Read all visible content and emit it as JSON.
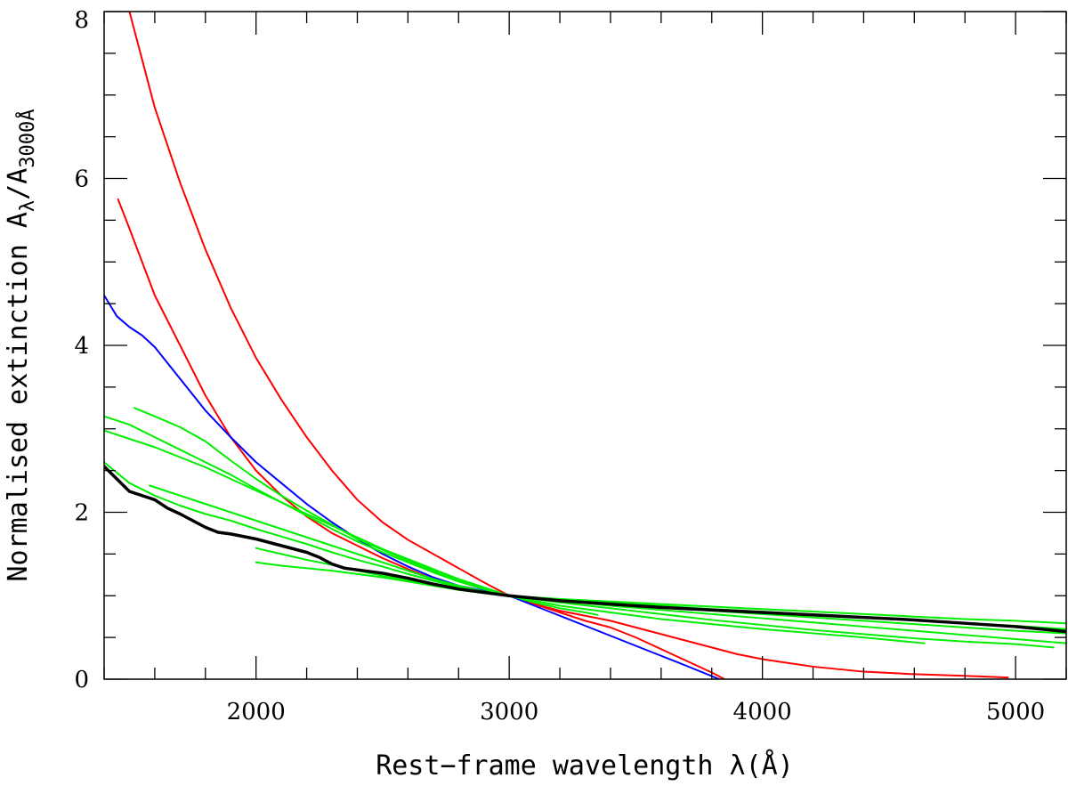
{
  "chart_data": {
    "type": "line",
    "xlabel": "Rest−frame wavelength λ(Å)",
    "ylabel": {
      "prefix": "Normalised extinction A",
      "sub1": "λ",
      "slash": "/A",
      "sub2": "3000Å"
    },
    "xlim": [
      1400,
      5200
    ],
    "ylim": [
      0,
      8
    ],
    "x_ticks": [
      2000,
      3000,
      4000,
      5000
    ],
    "x_minor_step": 200,
    "y_ticks": [
      0,
      2,
      4,
      6,
      8
    ],
    "y_minor_step": 0.5,
    "grid": false,
    "colors": {
      "red": "#ff0000",
      "blue": "#0000ff",
      "green": "#00ee00",
      "black": "#000000"
    },
    "series": [
      {
        "color": "red",
        "width": 2,
        "x": [
          1500,
          1600,
          1700,
          1800,
          1900,
          2000,
          2100,
          2200,
          2300,
          2400,
          2500,
          2600,
          2700,
          2800,
          2900,
          3000,
          3100,
          3200,
          3300,
          3400,
          3500,
          3600,
          3700,
          3800,
          3900,
          4000,
          4200,
          4400,
          4600,
          4800,
          4970
        ],
        "y": [
          8.0,
          6.85,
          5.95,
          5.15,
          4.45,
          3.85,
          3.35,
          2.9,
          2.5,
          2.15,
          1.88,
          1.67,
          1.5,
          1.33,
          1.16,
          1.0,
          0.9,
          0.82,
          0.76,
          0.7,
          0.62,
          0.54,
          0.46,
          0.38,
          0.3,
          0.24,
          0.15,
          0.09,
          0.06,
          0.04,
          0.02
        ]
      },
      {
        "color": "red",
        "width": 2,
        "x": [
          1455,
          1500,
          1550,
          1600,
          1650,
          1700,
          1800,
          1900,
          2000,
          2100,
          2200,
          2300,
          2400,
          2500,
          2600,
          2700,
          2800,
          2900,
          3000,
          3100,
          3200,
          3300,
          3400,
          3500,
          3600,
          3700,
          3800,
          3850
        ],
        "y": [
          5.75,
          5.4,
          5.0,
          4.6,
          4.3,
          4.0,
          3.4,
          2.9,
          2.5,
          2.2,
          1.95,
          1.75,
          1.6,
          1.45,
          1.32,
          1.2,
          1.1,
          1.05,
          1.0,
          0.9,
          0.8,
          0.7,
          0.62,
          0.5,
          0.36,
          0.22,
          0.08,
          0.0
        ]
      },
      {
        "color": "blue",
        "width": 2,
        "x": [
          1400,
          1450,
          1500,
          1550,
          1600,
          1700,
          1800,
          1900,
          2000,
          2100,
          2200,
          2300,
          2400,
          2500,
          2600,
          2700,
          2800,
          2900,
          3000,
          3100,
          3200,
          3300,
          3400,
          3500,
          3600,
          3700,
          3830
        ],
        "y": [
          4.6,
          4.35,
          4.22,
          4.12,
          3.98,
          3.6,
          3.22,
          2.9,
          2.6,
          2.35,
          2.1,
          1.88,
          1.68,
          1.5,
          1.35,
          1.22,
          1.12,
          1.06,
          1.0,
          0.88,
          0.76,
          0.64,
          0.52,
          0.4,
          0.28,
          0.16,
          0.0
        ]
      },
      {
        "color": "green",
        "width": 2,
        "x": [
          1520,
          1600,
          1700,
          1800,
          1900,
          2000,
          2100,
          2200,
          2300,
          2400,
          2500,
          2600,
          2700,
          2800,
          2900,
          3000,
          3100,
          3200,
          3300,
          3350
        ],
        "y": [
          3.25,
          3.15,
          3.02,
          2.85,
          2.62,
          2.4,
          2.2,
          2.02,
          1.85,
          1.68,
          1.55,
          1.42,
          1.3,
          1.18,
          1.08,
          1.0,
          0.92,
          0.85,
          0.8,
          0.77
        ]
      },
      {
        "color": "green",
        "width": 2,
        "x": [
          1400,
          1500,
          1600,
          1700,
          1800,
          1900,
          2000,
          2100,
          2200,
          2300,
          2400,
          2500,
          2600,
          2700,
          2800,
          2900,
          3000,
          3200,
          3400,
          3600,
          3800,
          4000,
          4200,
          4400,
          4640
        ],
        "y": [
          3.15,
          3.05,
          2.9,
          2.75,
          2.6,
          2.45,
          2.28,
          2.12,
          1.96,
          1.8,
          1.65,
          1.52,
          1.4,
          1.28,
          1.17,
          1.08,
          1.0,
          0.88,
          0.8,
          0.72,
          0.66,
          0.6,
          0.55,
          0.5,
          0.43
        ]
      },
      {
        "color": "green",
        "width": 2,
        "x": [
          1400,
          1500,
          1600,
          1700,
          1800,
          1900,
          2000,
          2100,
          2200,
          2300,
          2400,
          2500,
          2600,
          2700,
          2800,
          2900,
          3000,
          3200,
          3400,
          3600,
          3800,
          4000,
          4200,
          4400,
          4600,
          4800,
          5000,
          5150
        ],
        "y": [
          2.98,
          2.88,
          2.78,
          2.66,
          2.54,
          2.4,
          2.26,
          2.12,
          1.98,
          1.84,
          1.7,
          1.56,
          1.44,
          1.32,
          1.2,
          1.1,
          1.0,
          0.92,
          0.85,
          0.78,
          0.71,
          0.65,
          0.59,
          0.54,
          0.49,
          0.45,
          0.42,
          0.38
        ]
      },
      {
        "color": "green",
        "width": 2,
        "x": [
          1580,
          1700,
          1800,
          1900,
          2000,
          2100,
          2200,
          2300,
          2400,
          2500,
          2600,
          2700,
          2800,
          2900,
          3000,
          3200,
          3400,
          3600,
          3800,
          4000,
          4200,
          4400,
          4600,
          4800,
          5000,
          5200
        ],
        "y": [
          2.32,
          2.2,
          2.1,
          2.0,
          1.9,
          1.8,
          1.7,
          1.6,
          1.5,
          1.4,
          1.3,
          1.2,
          1.12,
          1.05,
          1.0,
          0.94,
          0.88,
          0.83,
          0.78,
          0.73,
          0.68,
          0.63,
          0.58,
          0.53,
          0.48,
          0.43
        ]
      },
      {
        "color": "green",
        "width": 2,
        "x": [
          1400,
          1500,
          1600,
          1700,
          1800,
          1900,
          2000,
          2100,
          2200,
          2300,
          2400,
          2500,
          2600,
          2700,
          2800,
          2900,
          3000,
          3200,
          3400,
          3600,
          3800,
          4000,
          4200,
          4400,
          4600,
          4800,
          5000,
          5200
        ],
        "y": [
          2.6,
          2.35,
          2.2,
          2.08,
          1.98,
          1.9,
          1.8,
          1.71,
          1.62,
          1.52,
          1.43,
          1.35,
          1.26,
          1.18,
          1.1,
          1.05,
          1.0,
          0.95,
          0.9,
          0.86,
          0.82,
          0.78,
          0.74,
          0.7,
          0.66,
          0.62,
          0.58,
          0.55
        ]
      },
      {
        "color": "green",
        "width": 2,
        "x": [
          2000,
          2100,
          2200,
          2300,
          2400,
          2500,
          2600,
          2700,
          2800,
          2900,
          3000,
          3200,
          3400,
          3600,
          3800,
          4000,
          4200,
          4400,
          4600,
          4800,
          5000,
          5200
        ],
        "y": [
          1.57,
          1.5,
          1.43,
          1.37,
          1.3,
          1.24,
          1.18,
          1.12,
          1.07,
          1.03,
          1.0,
          0.96,
          0.92,
          0.88,
          0.84,
          0.81,
          0.77,
          0.74,
          0.71,
          0.67,
          0.64,
          0.6
        ]
      },
      {
        "color": "green",
        "width": 2,
        "x": [
          2000,
          2100,
          2200,
          2300,
          2400,
          2500,
          2600,
          2700,
          2800,
          2900,
          3000,
          3200,
          3400,
          3600,
          3800,
          4000,
          4200,
          4400,
          4600,
          4800,
          5000,
          5200
        ],
        "y": [
          1.4,
          1.36,
          1.33,
          1.3,
          1.26,
          1.22,
          1.17,
          1.12,
          1.08,
          1.04,
          1.0,
          0.96,
          0.93,
          0.9,
          0.87,
          0.84,
          0.81,
          0.78,
          0.75,
          0.72,
          0.7,
          0.67
        ]
      },
      {
        "color": "black",
        "width": 3.5,
        "x": [
          1400,
          1450,
          1500,
          1550,
          1600,
          1650,
          1700,
          1750,
          1800,
          1850,
          1900,
          2000,
          2100,
          2200,
          2250,
          2300,
          2350,
          2400,
          2500,
          2600,
          2700,
          2800,
          2900,
          3000,
          3200,
          3400,
          3600,
          3800,
          4000,
          4200,
          4400,
          4600,
          4800,
          5000,
          5200
        ],
        "y": [
          2.55,
          2.4,
          2.25,
          2.2,
          2.15,
          2.05,
          1.98,
          1.9,
          1.82,
          1.76,
          1.74,
          1.68,
          1.6,
          1.52,
          1.46,
          1.38,
          1.33,
          1.31,
          1.27,
          1.21,
          1.14,
          1.08,
          1.04,
          1.0,
          0.94,
          0.9,
          0.86,
          0.83,
          0.8,
          0.77,
          0.74,
          0.71,
          0.67,
          0.63,
          0.57
        ]
      }
    ]
  }
}
